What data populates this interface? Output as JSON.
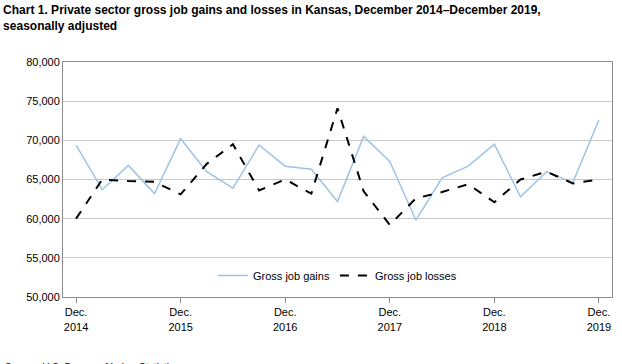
{
  "chart_data": {
    "type": "line",
    "title": "Chart 1. Private sector gross job gains and losses in Kansas, December 2014–December 2019, seasonally adjusted",
    "categories": [
      "Dec. 2014",
      null,
      null,
      null,
      "Dec. 2015",
      null,
      null,
      null,
      "Dec. 2016",
      null,
      null,
      null,
      "Dec. 2017",
      null,
      null,
      null,
      "Dec. 2018",
      null,
      null,
      null,
      "Dec. 2019"
    ],
    "series": [
      {
        "name": "Gross job gains",
        "color": "#9dc3e6",
        "line_style": "solid",
        "values": [
          69400,
          63700,
          66800,
          63200,
          70200,
          66000,
          63900,
          69400,
          66700,
          66300,
          62200,
          70500,
          67300,
          59800,
          65200,
          66700,
          69500,
          62800,
          66000,
          64600,
          72600
        ]
      },
      {
        "name": "Gross job losses",
        "color": "#000000",
        "line_style": "dash",
        "values": [
          60000,
          65000,
          64800,
          64700,
          63100,
          67000,
          69500,
          63600,
          65000,
          63200,
          74100,
          63500,
          59200,
          62600,
          63400,
          64400,
          62100,
          65000,
          66000,
          64500,
          65000
        ]
      }
    ],
    "ylim": [
      50000,
      80000
    ],
    "yticks": [
      {
        "value": 50000,
        "label": "50,000"
      },
      {
        "value": 55000,
        "label": "55,000"
      },
      {
        "value": 60000,
        "label": "60,000"
      },
      {
        "value": 65000,
        "label": "65,000"
      },
      {
        "value": 70000,
        "label": "70,000"
      },
      {
        "value": 75000,
        "label": "75,000"
      },
      {
        "value": 80000,
        "label": "80,000"
      }
    ],
    "grid": true,
    "legend": "bottom",
    "annotations": [
      "Source: U.S. Bureau of Labor Statistics."
    ]
  }
}
